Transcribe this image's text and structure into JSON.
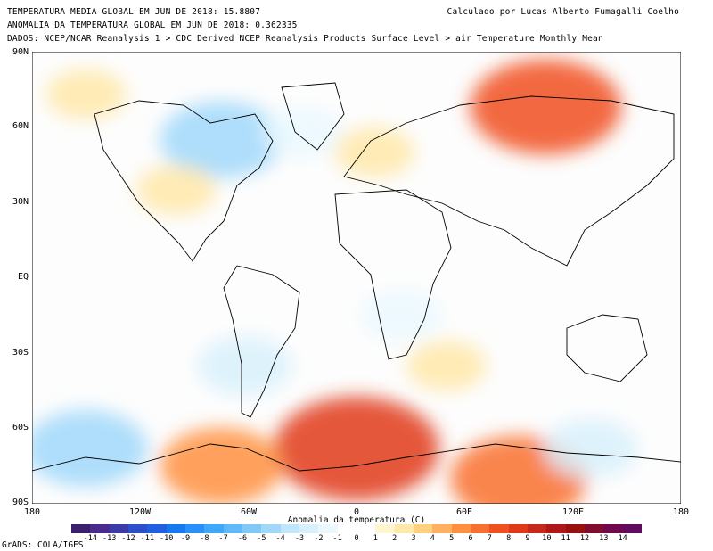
{
  "header": {
    "title_line1": "TEMPERATURA MEDIA GLOBAL EM JUN DE 2018: 15.8807",
    "title_line2": "ANOMALIA DA TEMPERATURA GLOBAL EM JUN DE 2018: 0.362335",
    "title_line3": "DADOS: NCEP/NCAR Reanalysis 1 > CDC Derived NCEP Reanalysis Products Surface Level > air Temperature Monthly Mean",
    "credit": "Calculado por Lucas Alberto Fumagalli Coelho"
  },
  "axes": {
    "lat_labels": [
      "90N",
      "60N",
      "30N",
      "EQ",
      "30S",
      "60S",
      "90S"
    ],
    "lon_labels": [
      "180",
      "120W",
      "60W",
      "0",
      "60E",
      "120E",
      "180"
    ],
    "colorbar_label": "Anomalia da temperatura (C)"
  },
  "colorbar": {
    "ticks": [
      "-14",
      "-13",
      "-12",
      "-11",
      "-10",
      "-9",
      "-8",
      "-7",
      "-6",
      "-5",
      "-4",
      "-3",
      "-2",
      "-1",
      "0",
      "1",
      "2",
      "3",
      "4",
      "5",
      "6",
      "7",
      "8",
      "9",
      "10",
      "11",
      "12",
      "13",
      "14"
    ],
    "colors": [
      "#3b1f6e",
      "#4a2a8c",
      "#3c3ca8",
      "#2c50c8",
      "#2060e0",
      "#1878f0",
      "#2890f8",
      "#40a8f8",
      "#60b8f8",
      "#80c8f8",
      "#a0d8fa",
      "#c0e6fc",
      "#d8f0fc",
      "#eaf8fe",
      "#ffffff",
      "#ffffff",
      "#fff6d0",
      "#ffe8a8",
      "#ffd080",
      "#ffb060",
      "#ff9040",
      "#f87030",
      "#f05020",
      "#e03818",
      "#c82818",
      "#b01818",
      "#981010",
      "#800c30",
      "#700850",
      "#600a60"
    ]
  },
  "footer": {
    "grads": "GrADS: COLA/IGES"
  },
  "map": {
    "anomalies": [
      {
        "name": "siberia-warm",
        "lon": 105,
        "lat": 68,
        "value": 7
      },
      {
        "name": "antarctic-warm-atlantic",
        "lon": 0,
        "lat": -68,
        "value": 8
      },
      {
        "name": "antarctic-warm-east",
        "lon": 90,
        "lat": -80,
        "value": 6
      },
      {
        "name": "antarctic-warm-west",
        "lon": -75,
        "lat": -75,
        "value": 5
      },
      {
        "name": "canada-cold",
        "lon": -75,
        "lat": 55,
        "value": -5
      },
      {
        "name": "south-pacific-cold",
        "lon": -150,
        "lat": -68,
        "value": -5
      },
      {
        "name": "south-america-cold",
        "lon": -62,
        "lat": -35,
        "value": -3
      },
      {
        "name": "africa-cold",
        "lon": 25,
        "lat": -15,
        "value": -2
      },
      {
        "name": "us-warm",
        "lon": -100,
        "lat": 35,
        "value": 2
      },
      {
        "name": "europe-warm",
        "lon": 10,
        "lat": 50,
        "value": 2
      },
      {
        "name": "arctic-warm-pacific",
        "lon": -150,
        "lat": 73,
        "value": 2
      },
      {
        "name": "atlantic-cold",
        "lon": -30,
        "lat": 58,
        "value": -2
      },
      {
        "name": "weddell-cold",
        "lon": 130,
        "lat": -68,
        "value": -3
      },
      {
        "name": "south-indian-warm",
        "lon": 50,
        "lat": -35,
        "value": 2
      }
    ]
  }
}
